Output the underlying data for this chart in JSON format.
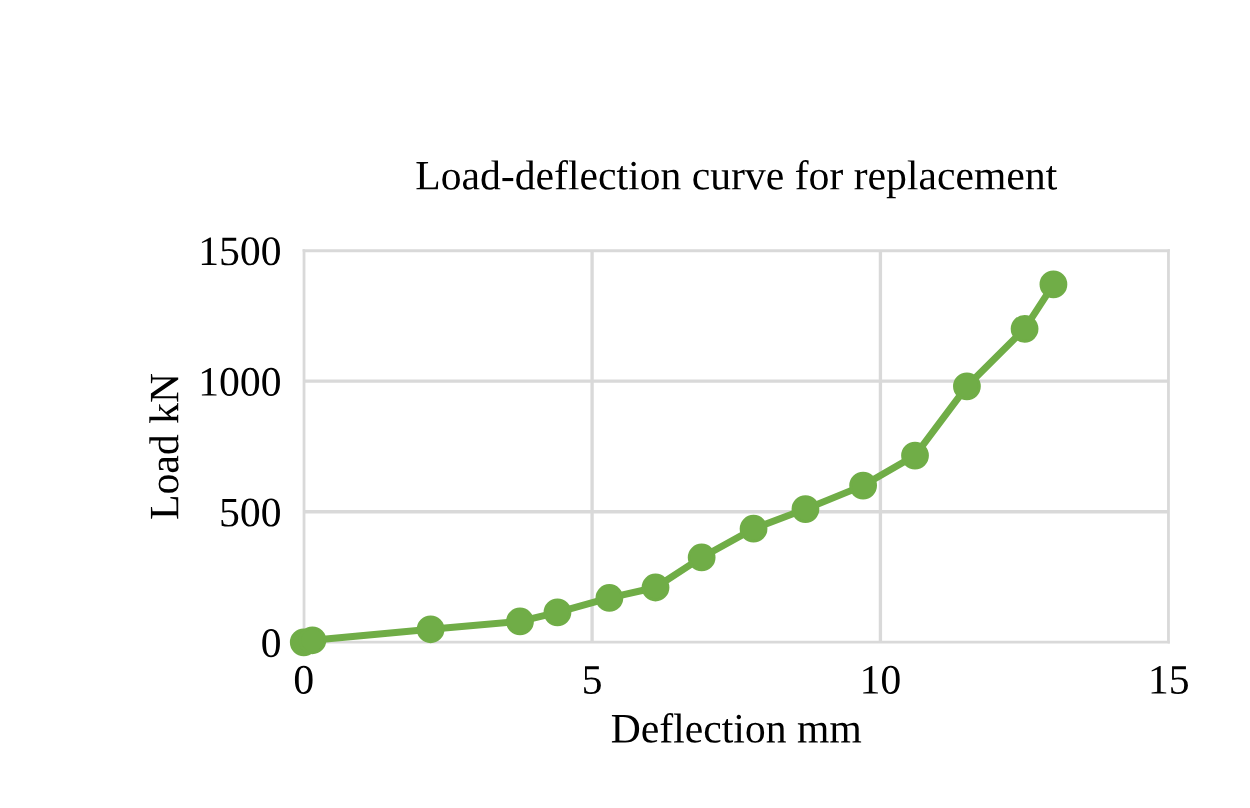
{
  "chart_data": {
    "type": "line",
    "title": "Load-deflection curve for replacement",
    "xlabel": "Deflection mm",
    "ylabel": "Load kN",
    "x": [
      0,
      0.15,
      2.2,
      3.75,
      4.4,
      5.3,
      6.1,
      6.9,
      7.8,
      8.7,
      9.7,
      10.6,
      11.5,
      12.5,
      13.0
    ],
    "series": [
      {
        "color": "#70ad47",
        "values": [
          0,
          8,
          50,
          80,
          115,
          170,
          210,
          325,
          435,
          510,
          600,
          715,
          980,
          1200,
          1370
        ]
      }
    ],
    "xlim": [
      0,
      15
    ],
    "xticks": [
      0,
      5,
      10,
      15
    ],
    "ylim": [
      0,
      1500
    ],
    "yticks": [
      0,
      500,
      1000,
      1500
    ],
    "grid": true,
    "marker": "circle",
    "line_style": "solid"
  }
}
